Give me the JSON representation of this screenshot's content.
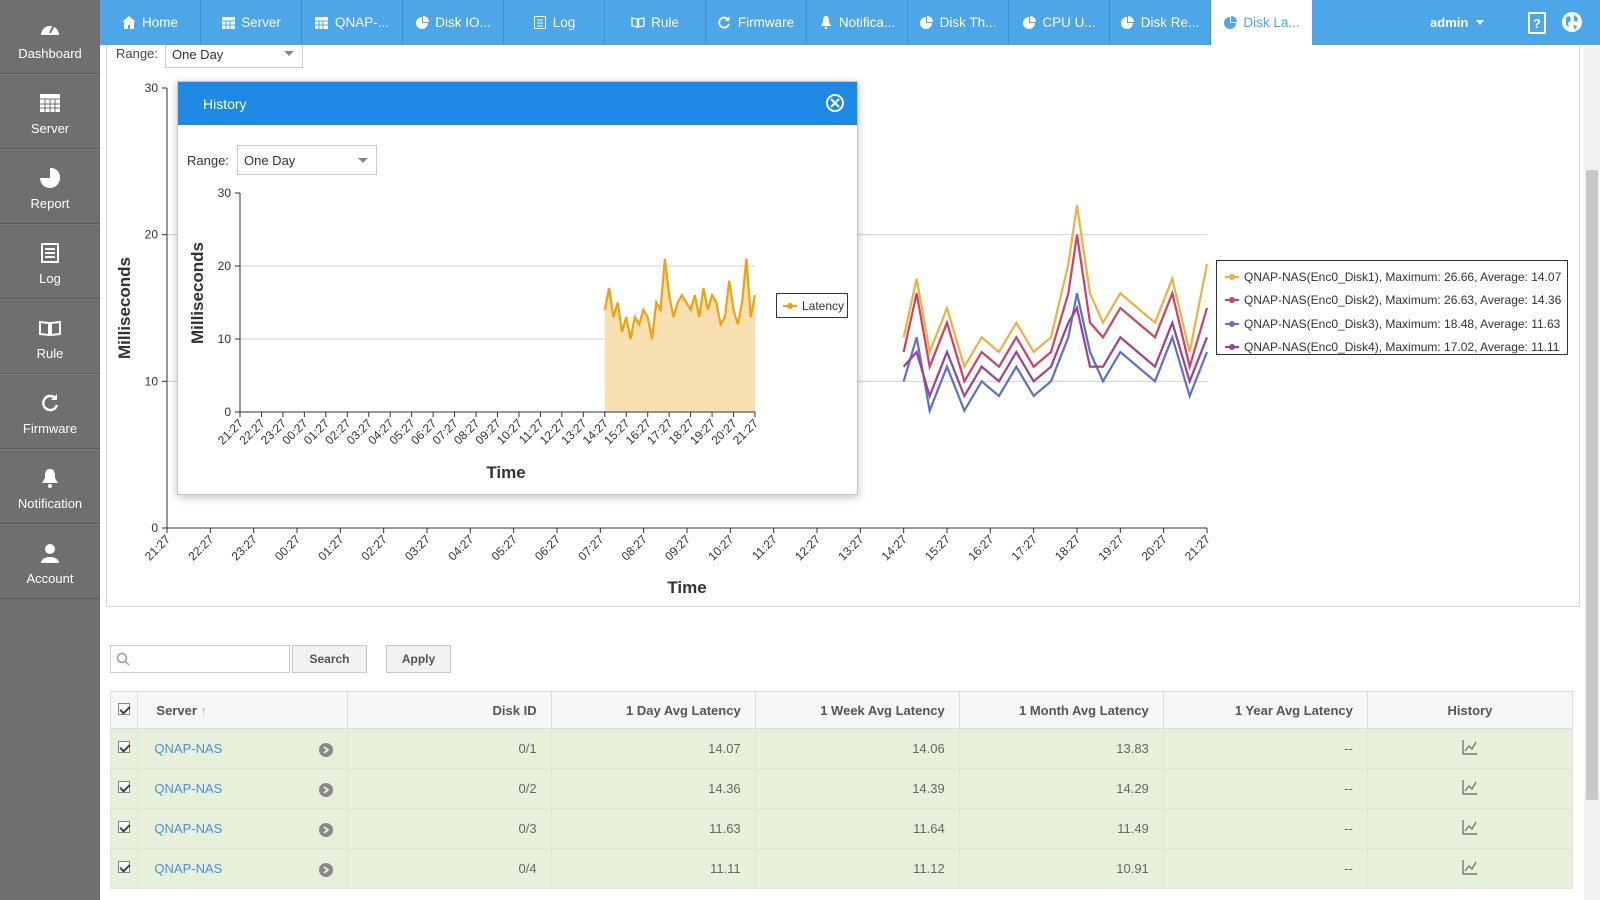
{
  "sidebar": {
    "items": [
      {
        "label": "Dashboard",
        "icon": "dashboard-gauge-icon"
      },
      {
        "label": "Server",
        "icon": "server-grid-icon"
      },
      {
        "label": "Report",
        "icon": "pie-chart-icon"
      },
      {
        "label": "Log",
        "icon": "document-icon"
      },
      {
        "label": "Rule",
        "icon": "book-icon"
      },
      {
        "label": "Firmware",
        "icon": "refresh-icon"
      },
      {
        "label": "Notification",
        "icon": "bell-icon"
      },
      {
        "label": "Account",
        "icon": "user-icon"
      }
    ]
  },
  "tabs": [
    {
      "label": "Home",
      "icon": "home-icon"
    },
    {
      "label": "Server",
      "icon": "server-icon"
    },
    {
      "label": "QNAP-...",
      "icon": "server-icon"
    },
    {
      "label": "Disk IO...",
      "icon": "pie-chart-icon"
    },
    {
      "label": "Log",
      "icon": "document-icon"
    },
    {
      "label": "Rule",
      "icon": "book-icon"
    },
    {
      "label": "Firmware",
      "icon": "refresh-icon"
    },
    {
      "label": "Notifica...",
      "icon": "bell-icon"
    },
    {
      "label": "Disk Th...",
      "icon": "pie-chart-icon"
    },
    {
      "label": "CPU U...",
      "icon": "pie-chart-icon"
    },
    {
      "label": "Disk Re...",
      "icon": "pie-chart-icon"
    },
    {
      "label": "Disk La...",
      "icon": "pie-chart-icon",
      "active": true
    }
  ],
  "header": {
    "user": "admin"
  },
  "colors": {
    "topbar": "#4da6e8",
    "sidebar": "#6f6f6f",
    "modal_header": "#1e88e5",
    "row_bg": "#e6f0db"
  },
  "main_range": {
    "label": "Range:",
    "value": "One Day"
  },
  "chart_data": [
    {
      "type": "line",
      "ylabel": "Milliseconds",
      "xlabel": "Time",
      "ylim": [
        0,
        30
      ],
      "yticks": [
        0,
        10,
        20,
        30
      ],
      "grid": true,
      "legend_position": "right",
      "categories": [
        "21:27",
        "22:27",
        "23:27",
        "00:27",
        "01:27",
        "02:27",
        "03:27",
        "04:27",
        "05:27",
        "06:27",
        "07:27",
        "08:27",
        "09:27",
        "10:27",
        "11:27",
        "12:27",
        "13:27",
        "14:27",
        "15:27",
        "16:27",
        "17:27",
        "18:27",
        "19:27",
        "20:27",
        "21:27"
      ],
      "series": [
        {
          "name": "QNAP-NAS(Enc0_Disk1), Maximum: 26.66, Average: 14.07",
          "color": "#f0b040",
          "points": [
            [
              17.0,
              13
            ],
            [
              17.3,
              17
            ],
            [
              17.6,
              12
            ],
            [
              18.0,
              15
            ],
            [
              18.4,
              11
            ],
            [
              18.8,
              13
            ],
            [
              19.2,
              12
            ],
            [
              19.6,
              14
            ],
            [
              20.0,
              12
            ],
            [
              20.4,
              13
            ],
            [
              20.8,
              18
            ],
            [
              21.0,
              22
            ],
            [
              21.3,
              16
            ],
            [
              21.6,
              14
            ],
            [
              22.0,
              16
            ],
            [
              22.4,
              15
            ],
            [
              22.8,
              14
            ],
            [
              23.2,
              17
            ],
            [
              23.6,
              12
            ],
            [
              24.0,
              18
            ]
          ]
        },
        {
          "name": "QNAP-NAS(Enc0_Disk2), Maximum: 26.63, Average: 14.36",
          "color": "#d04060",
          "points": [
            [
              17.0,
              12
            ],
            [
              17.3,
              16
            ],
            [
              17.6,
              11
            ],
            [
              18.0,
              14
            ],
            [
              18.4,
              10
            ],
            [
              18.8,
              12
            ],
            [
              19.2,
              11
            ],
            [
              19.6,
              13
            ],
            [
              20.0,
              11
            ],
            [
              20.4,
              12
            ],
            [
              20.8,
              16
            ],
            [
              21.0,
              20
            ],
            [
              21.3,
              14
            ],
            [
              21.6,
              13
            ],
            [
              22.0,
              15
            ],
            [
              22.4,
              14
            ],
            [
              22.8,
              13
            ],
            [
              23.2,
              16
            ],
            [
              23.6,
              11
            ],
            [
              24.0,
              15
            ]
          ]
        },
        {
          "name": "QNAP-NAS(Enc0_Disk3), Maximum: 18.48, Average: 11.63",
          "color": "#5a6fd0",
          "points": [
            [
              17.0,
              10
            ],
            [
              17.3,
              13
            ],
            [
              17.6,
              8
            ],
            [
              18.0,
              11
            ],
            [
              18.4,
              8
            ],
            [
              18.8,
              10
            ],
            [
              19.2,
              9
            ],
            [
              19.6,
              11
            ],
            [
              20.0,
              9
            ],
            [
              20.4,
              10
            ],
            [
              20.8,
              13
            ],
            [
              21.0,
              16
            ],
            [
              21.3,
              12
            ],
            [
              21.6,
              10
            ],
            [
              22.0,
              12
            ],
            [
              22.4,
              11
            ],
            [
              22.8,
              10
            ],
            [
              23.2,
              13
            ],
            [
              23.6,
              9
            ],
            [
              24.0,
              12
            ]
          ]
        },
        {
          "name": "QNAP-NAS(Enc0_Disk4), Maximum: 17.02, Average: 11.11",
          "color": "#a04090",
          "points": [
            [
              17.0,
              11
            ],
            [
              17.3,
              12
            ],
            [
              17.6,
              9
            ],
            [
              18.0,
              12
            ],
            [
              18.4,
              9
            ],
            [
              18.8,
              11
            ],
            [
              19.2,
              10
            ],
            [
              19.6,
              12
            ],
            [
              20.0,
              10
            ],
            [
              20.4,
              11
            ],
            [
              20.8,
              14
            ],
            [
              21.0,
              15
            ],
            [
              21.3,
              11
            ],
            [
              21.6,
              11
            ],
            [
              22.0,
              13
            ],
            [
              22.4,
              12
            ],
            [
              22.8,
              11
            ],
            [
              23.2,
              14
            ],
            [
              23.6,
              10
            ],
            [
              24.0,
              13
            ]
          ]
        }
      ]
    },
    {
      "type": "area",
      "title": "History",
      "ylabel": "Milliseconds",
      "xlabel": "Time",
      "ylim": [
        0,
        30
      ],
      "yticks": [
        0,
        10,
        20,
        30
      ],
      "grid": true,
      "legend_position": "right",
      "categories": [
        "21:27",
        "22:27",
        "23:27",
        "00:27",
        "01:27",
        "02:27",
        "03:27",
        "04:27",
        "05:27",
        "06:27",
        "07:27",
        "08:27",
        "09:27",
        "10:27",
        "11:27",
        "12:27",
        "13:27",
        "14:27",
        "15:27",
        "16:27",
        "17:27",
        "18:27",
        "19:27",
        "20:27",
        "21:27"
      ],
      "series": [
        {
          "name": "Latency",
          "color": "#f0a010",
          "points": [
            [
              17.0,
              14
            ],
            [
              17.2,
              17
            ],
            [
              17.4,
              13
            ],
            [
              17.6,
              15
            ],
            [
              17.8,
              11
            ],
            [
              18.0,
              13
            ],
            [
              18.2,
              10
            ],
            [
              18.4,
              13
            ],
            [
              18.6,
              12
            ],
            [
              18.8,
              14
            ],
            [
              19.0,
              13
            ],
            [
              19.2,
              10
            ],
            [
              19.4,
              15
            ],
            [
              19.6,
              14
            ],
            [
              19.8,
              21
            ],
            [
              20.0,
              16
            ],
            [
              20.2,
              13
            ],
            [
              20.4,
              15
            ],
            [
              20.6,
              16
            ],
            [
              20.8,
              15
            ],
            [
              21.0,
              14
            ],
            [
              21.2,
              16
            ],
            [
              21.4,
              13
            ],
            [
              21.6,
              17
            ],
            [
              21.8,
              14
            ],
            [
              22.0,
              16
            ],
            [
              22.2,
              15
            ],
            [
              22.4,
              12
            ],
            [
              22.6,
              13
            ],
            [
              22.8,
              18
            ],
            [
              23.0,
              14
            ],
            [
              23.2,
              12
            ],
            [
              23.4,
              15
            ],
            [
              23.6,
              21
            ],
            [
              23.8,
              13
            ],
            [
              24.0,
              16
            ]
          ]
        }
      ]
    }
  ],
  "modal": {
    "title": "History",
    "range_label": "Range:",
    "range_value": "One Day",
    "legend": "Latency"
  },
  "search": {
    "placeholder": "",
    "button": "Search",
    "apply": "Apply"
  },
  "table": {
    "headers": [
      "Server",
      "Disk ID",
      "1 Day Avg Latency",
      "1 Week Avg Latency",
      "1 Month Avg Latency",
      "1 Year Avg Latency",
      "History"
    ],
    "rows": [
      {
        "server": "QNAP-NAS",
        "disk": "0/1",
        "day": "14.07",
        "week": "14.06",
        "month": "13.83",
        "year": "--"
      },
      {
        "server": "QNAP-NAS",
        "disk": "0/2",
        "day": "14.36",
        "week": "14.39",
        "month": "14.29",
        "year": "--"
      },
      {
        "server": "QNAP-NAS",
        "disk": "0/3",
        "day": "11.63",
        "week": "11.64",
        "month": "11.49",
        "year": "--"
      },
      {
        "server": "QNAP-NAS",
        "disk": "0/4",
        "day": "11.11",
        "week": "11.12",
        "month": "10.91",
        "year": "--"
      }
    ]
  }
}
